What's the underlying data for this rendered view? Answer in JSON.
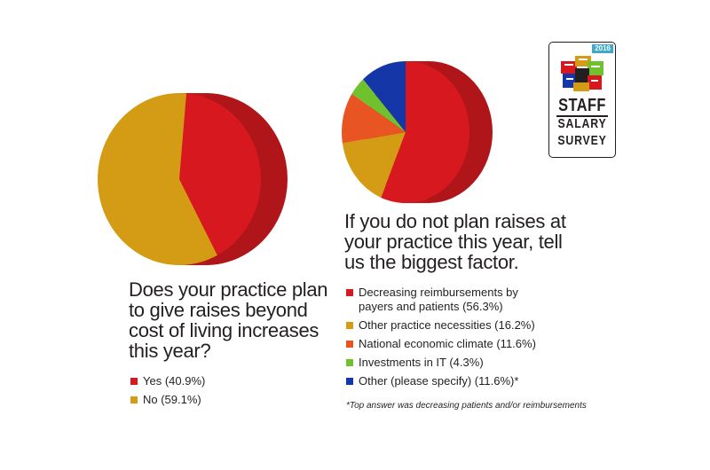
{
  "colors": {
    "red": "#d7191f",
    "gold": "#d49b14",
    "orange": "#e85523",
    "green": "#6fc22e",
    "blue": "#1436a6",
    "teal": "#3fa9c7"
  },
  "badge": {
    "year": "2016",
    "line1": "STAFF",
    "line2": "SALARY",
    "line3": "SURVEY"
  },
  "chart_data": [
    {
      "type": "pie",
      "title": "Does your practice plan to give raises beyond cost of living increases this year?",
      "slices": [
        {
          "label": "Yes (40.9%)",
          "value": 40.9,
          "color": "#d7191f"
        },
        {
          "label": "No (59.1%)",
          "value": 59.1,
          "color": "#d49b14"
        }
      ]
    },
    {
      "type": "pie",
      "title": "If you do not plan raises at your practice this year, tell us the biggest factor.",
      "slices": [
        {
          "label": "Decreasing reimbursements by payers and patients (56.3%)",
          "value": 56.3,
          "color": "#d7191f"
        },
        {
          "label": "Other practice necessities (16.2%)",
          "value": 16.2,
          "color": "#d49b14"
        },
        {
          "label": "National economic climate (11.6%)",
          "value": 11.6,
          "color": "#e85523"
        },
        {
          "label": "Investments in IT (4.3%)",
          "value": 4.3,
          "color": "#6fc22e"
        },
        {
          "label": "Other (please specify) (11.6%)*",
          "value": 11.6,
          "color": "#1436a6"
        }
      ],
      "footnote": "*Top answer was decreasing patients and/or reimbursements"
    }
  ]
}
